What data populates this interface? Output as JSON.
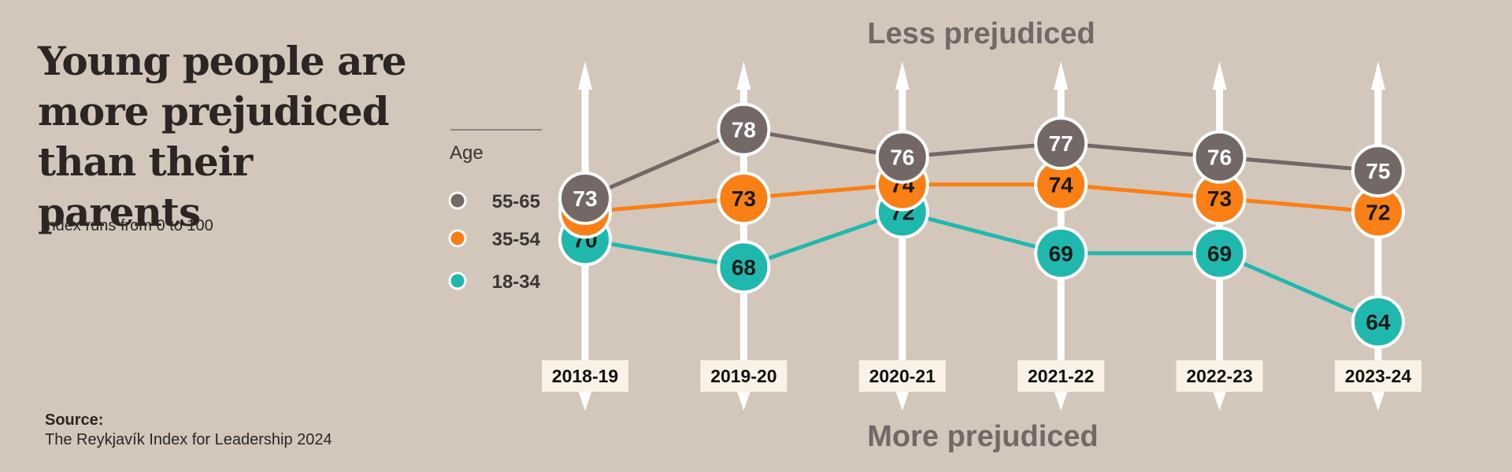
{
  "title": "Young people are more prejudiced than their parents",
  "subtitle": "Index runs from 0 to 100",
  "source": {
    "label": "Source:",
    "text": "The Reykjavík Index for Leadership 2024"
  },
  "chart_data": {
    "type": "line",
    "top_label": "Less prejudiced",
    "bottom_label": "More prejudiced",
    "legend_title": "Age",
    "legend_position": "left",
    "categories": [
      "2018-19",
      "2019-20",
      "2020-21",
      "2021-22",
      "2022-23",
      "2023-24"
    ],
    "series": [
      {
        "name": "55-65",
        "color": "#736866",
        "text_color": "#ffffff",
        "values": [
          73,
          78,
          76,
          77,
          76,
          75
        ]
      },
      {
        "name": "35-54",
        "color": "#fa7f14",
        "text_color": "#1a1a1a",
        "values": [
          72,
          73,
          74,
          74,
          73,
          72
        ]
      },
      {
        "name": "18-34",
        "color": "#20b8ad",
        "text_color": "#1a1a1a",
        "values": [
          70,
          68,
          72,
          69,
          69,
          64
        ]
      }
    ]
  }
}
